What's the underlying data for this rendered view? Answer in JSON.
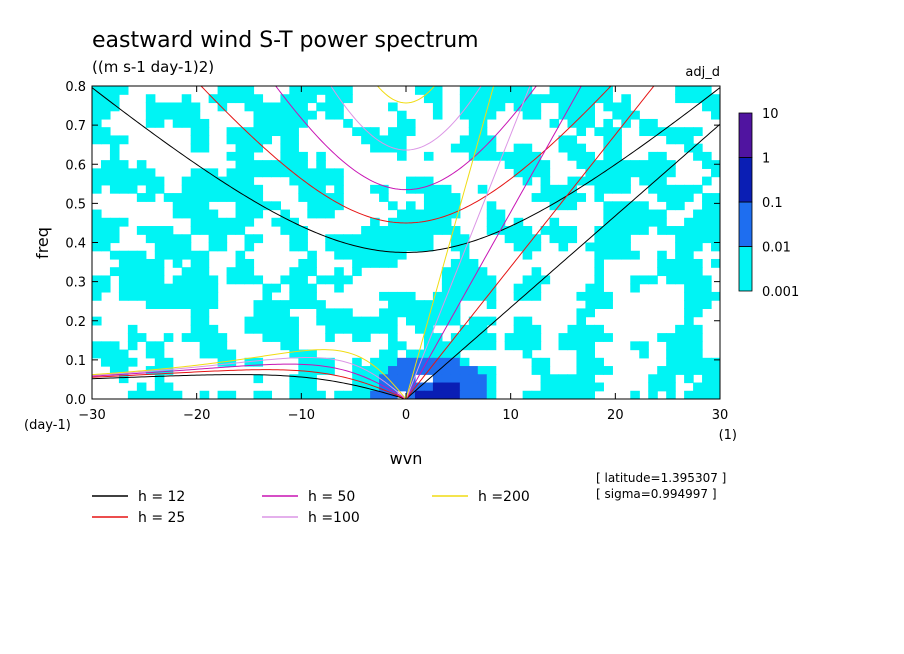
{
  "chart_data": {
    "type": "heatmap",
    "title": "eastward wind S-T power spectrum",
    "units": "((m s-1 day-1)2)",
    "corner_label": "adj_d",
    "xlabel": "wvn",
    "ylabel": "freq",
    "x_unit": "(1)",
    "y_unit": "(day-1)",
    "xlim": [
      -30,
      30
    ],
    "ylim": [
      0,
      0.8
    ],
    "xticks": [
      "-30",
      "-20",
      "-10",
      "0",
      "10",
      "20",
      "30"
    ],
    "yticks": [
      "0.0",
      "0.1",
      "0.2",
      "0.3",
      "0.4",
      "0.5",
      "0.6",
      "0.7",
      "0.8"
    ],
    "colorbar": {
      "levels": [
        "0.001",
        "0.01",
        "0.1",
        "1",
        "10"
      ],
      "colors": [
        "#00f4f4",
        "#1e6ef0",
        "#0a1eb4",
        "#5014a0"
      ]
    },
    "series": [
      {
        "name": "h = 12",
        "h": 12,
        "color": "#000000"
      },
      {
        "name": "h = 25",
        "h": 25,
        "color": "#e61414"
      },
      {
        "name": "h = 50",
        "h": 50,
        "color": "#c814b4"
      },
      {
        "name": "h =100",
        "h": 100,
        "color": "#dc96e6"
      },
      {
        "name": "h =200",
        "h": 200,
        "color": "#f0dc14"
      }
    ],
    "info": [
      "[ latitude=1.395307 ]",
      "[ sigma=0.994997 ]"
    ],
    "grid": false
  }
}
